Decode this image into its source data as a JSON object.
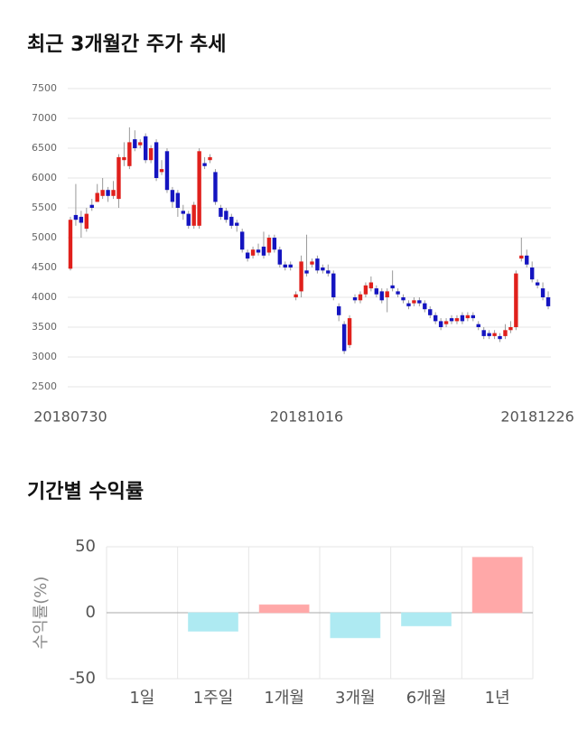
{
  "chart_data": [
    {
      "type": "candlestick",
      "title": "최근 3개월간 주가 추세",
      "categories": [
        "20180730",
        null,
        null,
        null,
        null,
        null,
        null,
        null,
        null,
        null,
        null,
        null,
        null,
        null,
        null,
        null,
        null,
        null,
        null,
        null,
        null,
        null,
        null,
        null,
        null,
        null,
        null,
        null,
        null,
        null,
        null,
        null,
        null,
        null,
        null,
        null,
        null,
        null,
        null,
        null,
        null,
        null,
        null,
        null,
        "20181016",
        null,
        null,
        null,
        null,
        null,
        null,
        null,
        null,
        null,
        null,
        null,
        null,
        null,
        null,
        null,
        null,
        null,
        null,
        null,
        null,
        null,
        null,
        null,
        null,
        null,
        null,
        null,
        null,
        null,
        null,
        null,
        null,
        null,
        null,
        null,
        null,
        null,
        null,
        null,
        null,
        null,
        null,
        "20181226",
        null,
        null
      ],
      "open": [
        4480,
        5380,
        5350,
        5150,
        5550,
        5600,
        5700,
        5800,
        5700,
        5650,
        6300,
        6200,
        6650,
        6550,
        6700,
        6300,
        6600,
        6100,
        6450,
        5800,
        5750,
        5450,
        5400,
        5200,
        5200,
        6250,
        6300,
        6100,
        5500,
        5450,
        5350,
        5250,
        5100,
        4750,
        4700,
        4800,
        4850,
        4750,
        5000,
        4800,
        4550,
        4550,
        4000,
        4100,
        4450,
        4550,
        4650,
        4500,
        4450,
        4400,
        3850,
        3550,
        3200,
        4000,
        3950,
        4050,
        4150,
        4150,
        4100,
        4000,
        4200,
        4100,
        4000,
        3900,
        3900,
        3950,
        3900,
        3800,
        3700,
        3600,
        3550,
        3650,
        3600,
        3700,
        3650,
        3700,
        3550,
        3450,
        3400,
        3350,
        3350,
        3350,
        3450,
        3500,
        4650,
        4700,
        4500,
        4250,
        4150,
        4000
      ],
      "high": [
        5350,
        5900,
        5450,
        5500,
        5650,
        5900,
        6000,
        5850,
        5950,
        6400,
        6600,
        6850,
        6800,
        6650,
        6750,
        6550,
        6650,
        6300,
        6500,
        5850,
        5800,
        5550,
        5450,
        5600,
        6500,
        6350,
        6400,
        6150,
        5550,
        5500,
        5400,
        5300,
        5150,
        4800,
        4850,
        4900,
        5100,
        5050,
        5050,
        4850,
        4600,
        4600,
        4100,
        4700,
        5050,
        4650,
        4700,
        4550,
        4550,
        4450,
        3900,
        3600,
        3700,
        4050,
        4100,
        4250,
        4350,
        4200,
        4150,
        4150,
        4450,
        4150,
        4050,
        3950,
        4000,
        4000,
        3950,
        3850,
        3750,
        3650,
        3650,
        3700,
        3700,
        3750,
        3750,
        3750,
        3600,
        3500,
        3450,
        3450,
        3400,
        3550,
        3600,
        4450,
        5000,
        4800,
        4600,
        4300,
        4250,
        4100
      ],
      "low": [
        4450,
        5200,
        5000,
        5100,
        5450,
        5600,
        5650,
        5600,
        5650,
        5500,
        6200,
        6150,
        6450,
        6500,
        6250,
        6250,
        5950,
        6050,
        5750,
        5500,
        5350,
        5300,
        5150,
        5150,
        5150,
        6150,
        6250,
        5550,
        5300,
        5250,
        5150,
        5100,
        4750,
        4600,
        4650,
        4700,
        4650,
        4700,
        4750,
        4500,
        4450,
        4450,
        3950,
        4000,
        4350,
        4500,
        4400,
        4400,
        4350,
        3950,
        3600,
        3050,
        3150,
        3900,
        3900,
        4000,
        4100,
        4000,
        3900,
        3750,
        4100,
        4000,
        3900,
        3800,
        3850,
        3850,
        3750,
        3650,
        3550,
        3450,
        3500,
        3550,
        3550,
        3550,
        3600,
        3600,
        3450,
        3300,
        3300,
        3300,
        3250,
        3300,
        3400,
        3450,
        4600,
        4500,
        4250,
        4150,
        3950,
        3800
      ],
      "close": [
        5300,
        5300,
        5250,
        5400,
        5500,
        5750,
        5800,
        5700,
        5800,
        6350,
        6350,
        6600,
        6500,
        6600,
        6300,
        6500,
        6000,
        6150,
        5800,
        5600,
        5500,
        5400,
        5200,
        5550,
        6450,
        6200,
        6350,
        5600,
        5350,
        5300,
        5200,
        5200,
        4800,
        4650,
        4800,
        4750,
        4700,
        5000,
        4800,
        4550,
        4500,
        4500,
        4050,
        4600,
        4400,
        4600,
        4450,
        4450,
        4400,
        4000,
        3700,
        3100,
        3650,
        3950,
        4050,
        4200,
        4250,
        4050,
        3950,
        4100,
        4150,
        4050,
        3950,
        3850,
        3950,
        3900,
        3800,
        3700,
        3600,
        3500,
        3600,
        3600,
        3650,
        3600,
        3700,
        3650,
        3500,
        3350,
        3350,
        3400,
        3300,
        3450,
        3500,
        4400,
        4700,
        4550,
        4300,
        4200,
        4000,
        3850
      ],
      "up_color": "#e0201c",
      "down_color": "#1414c0",
      "wick_color": "#999999",
      "ylim": [
        2500,
        7500
      ],
      "yticks": [
        2500,
        3000,
        3500,
        4000,
        4500,
        5000,
        5500,
        6000,
        6500,
        7000,
        7500
      ],
      "grid": true
    },
    {
      "type": "bar",
      "title": "기간별 수익률",
      "y_label": "수익률(%)",
      "categories": [
        "1일",
        "1주일",
        "1개월",
        "3개월",
        "6개월",
        "1년"
      ],
      "values": [
        0,
        -14,
        6,
        -19,
        -10,
        42
      ],
      "colors": [
        "#ffa8a8",
        "#aeeaf2",
        "#ffa8a8",
        "#aeeaf2",
        "#aeeaf2",
        "#ffa8a8"
      ],
      "ylim": [
        -50,
        50
      ],
      "yticks": [
        -50,
        0,
        50
      ],
      "grid": true
    }
  ]
}
